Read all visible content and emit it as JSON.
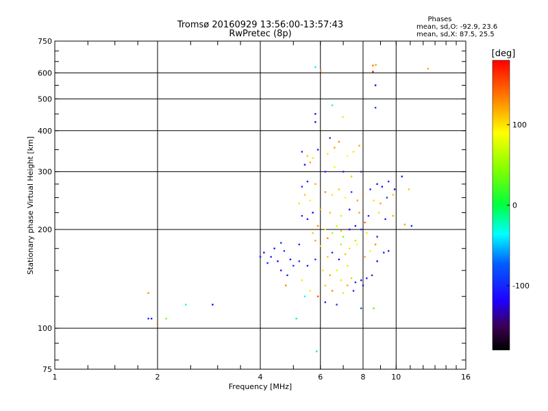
{
  "header": {
    "title_line1": "Tromsø 20160929 13:56:00-13:57:43",
    "title_line2": "RwPretec (8p)",
    "stats_title": "Phases",
    "stats_line1": "mean, sd,O: -92.9, 23.6",
    "stats_line2": "mean, sd,X:  87.5, 25.5"
  },
  "chart_data": {
    "type": "scatter",
    "xlabel": "Frequency [MHz]",
    "ylabel": "Stationary phase Virtual Height [km]",
    "xscale": "log",
    "yscale": "log",
    "xlim": [
      1,
      16
    ],
    "ylim": [
      75,
      750
    ],
    "xticks": [
      {
        "value": 1,
        "label": "1"
      },
      {
        "value": 2,
        "label": "2"
      },
      {
        "value": 4,
        "label": "4"
      },
      {
        "value": 6,
        "label": "6"
      },
      {
        "value": 8,
        "label": "8"
      },
      {
        "value": 10,
        "label": "10"
      },
      {
        "value": 16,
        "label": "16"
      }
    ],
    "yticks": [
      {
        "value": 75,
        "label": "75"
      },
      {
        "value": 100,
        "label": "100"
      },
      {
        "value": 200,
        "label": "200"
      },
      {
        "value": 300,
        "label": "300"
      },
      {
        "value": 400,
        "label": "400"
      },
      {
        "value": 500,
        "label": "500"
      },
      {
        "value": 600,
        "label": "600"
      },
      {
        "value": 750,
        "label": "750"
      }
    ],
    "x_gridlines": [
      2,
      4,
      6,
      8,
      10
    ],
    "y_gridlines": [
      100,
      200,
      300,
      400,
      500,
      600
    ],
    "colorbar": {
      "label": "[deg]",
      "range": [
        -180,
        180
      ],
      "ticks": [
        {
          "value": 100,
          "label": "100"
        },
        {
          "value": 0,
          "label": "0"
        },
        {
          "value": -100,
          "label": "-100"
        }
      ]
    },
    "points": [
      {
        "x": 1.88,
        "y": 128,
        "p": 130
      },
      {
        "x": 1.88,
        "y": 107,
        "p": -100
      },
      {
        "x": 1.92,
        "y": 107,
        "p": -110
      },
      {
        "x": 2.0,
        "y": 103,
        "p": 140
      },
      {
        "x": 2.12,
        "y": 107,
        "p": 40
      },
      {
        "x": 2.42,
        "y": 118,
        "p": -30
      },
      {
        "x": 2.9,
        "y": 118,
        "p": -120
      },
      {
        "x": 5.1,
        "y": 107,
        "p": -10
      },
      {
        "x": 5.85,
        "y": 85,
        "p": -10
      },
      {
        "x": 5.8,
        "y": 625,
        "p": -40
      },
      {
        "x": 6.02,
        "y": 610,
        "p": 120
      },
      {
        "x": 8.55,
        "y": 632,
        "p": 140
      },
      {
        "x": 8.55,
        "y": 605,
        "p": 175
      },
      {
        "x": 8.72,
        "y": 635,
        "p": 125
      },
      {
        "x": 8.7,
        "y": 550,
        "p": -130
      },
      {
        "x": 8.7,
        "y": 470,
        "p": -90
      },
      {
        "x": 12.4,
        "y": 618,
        "p": 120
      },
      {
        "x": 6.5,
        "y": 478,
        "p": -30
      },
      {
        "x": 5.8,
        "y": 450,
        "p": -120
      },
      {
        "x": 5.8,
        "y": 425,
        "p": -130
      },
      {
        "x": 6.98,
        "y": 440,
        "p": 100
      },
      {
        "x": 10.9,
        "y": 265,
        "p": 110
      },
      {
        "x": 11.1,
        "y": 205,
        "p": -100
      },
      {
        "x": 10.6,
        "y": 207,
        "p": 120
      },
      {
        "x": 10.4,
        "y": 290,
        "p": -110
      },
      {
        "x": 4.1,
        "y": 170,
        "p": -110
      },
      {
        "x": 4.3,
        "y": 165,
        "p": -100
      },
      {
        "x": 4.5,
        "y": 160,
        "p": -120
      },
      {
        "x": 4.7,
        "y": 172,
        "p": -90
      },
      {
        "x": 4.2,
        "y": 158,
        "p": -100
      },
      {
        "x": 4.6,
        "y": 150,
        "p": -105
      },
      {
        "x": 4.9,
        "y": 162,
        "p": -115
      },
      {
        "x": 5.0,
        "y": 155,
        "p": -95
      },
      {
        "x": 4.4,
        "y": 175,
        "p": -110
      },
      {
        "x": 4.8,
        "y": 145,
        "p": -100
      },
      {
        "x": 5.2,
        "y": 160,
        "p": -100
      },
      {
        "x": 5.5,
        "y": 155,
        "p": -110
      },
      {
        "x": 5.8,
        "y": 162,
        "p": -90
      },
      {
        "x": 4.75,
        "y": 135,
        "p": 130
      },
      {
        "x": 5.3,
        "y": 140,
        "p": 100
      },
      {
        "x": 5.6,
        "y": 130,
        "p": 80
      },
      {
        "x": 5.9,
        "y": 125,
        "p": 150
      },
      {
        "x": 5.4,
        "y": 125,
        "p": -30
      },
      {
        "x": 6.2,
        "y": 120,
        "p": -100
      },
      {
        "x": 6.7,
        "y": 118,
        "p": -90
      },
      {
        "x": 7.9,
        "y": 115,
        "p": -80
      },
      {
        "x": 8.6,
        "y": 115,
        "p": 30
      },
      {
        "x": 6.9,
        "y": 140,
        "p": 100
      },
      {
        "x": 7.2,
        "y": 135,
        "p": 120
      },
      {
        "x": 7.4,
        "y": 142,
        "p": 110
      },
      {
        "x": 7.6,
        "y": 138,
        "p": -100
      },
      {
        "x": 7.9,
        "y": 140,
        "p": -110
      },
      {
        "x": 8.2,
        "y": 142,
        "p": -105
      },
      {
        "x": 8.5,
        "y": 145,
        "p": -100
      },
      {
        "x": 8.8,
        "y": 160,
        "p": -120
      },
      {
        "x": 9.2,
        "y": 170,
        "p": -100
      },
      {
        "x": 9.5,
        "y": 172,
        "p": -110
      },
      {
        "x": 6.5,
        "y": 170,
        "p": -100
      },
      {
        "x": 6.8,
        "y": 162,
        "p": -110
      },
      {
        "x": 7.1,
        "y": 168,
        "p": 110
      },
      {
        "x": 7.3,
        "y": 175,
        "p": 100
      },
      {
        "x": 7.7,
        "y": 180,
        "p": 90
      },
      {
        "x": 8.1,
        "y": 165,
        "p": 120
      },
      {
        "x": 8.4,
        "y": 172,
        "p": 80
      },
      {
        "x": 8.7,
        "y": 180,
        "p": 130
      },
      {
        "x": 6.2,
        "y": 200,
        "p": 100
      },
      {
        "x": 6.5,
        "y": 195,
        "p": 60
      },
      {
        "x": 6.7,
        "y": 205,
        "p": 70
      },
      {
        "x": 6.9,
        "y": 198,
        "p": 110
      },
      {
        "x": 7.0,
        "y": 190,
        "p": 40
      },
      {
        "x": 7.3,
        "y": 200,
        "p": -120
      },
      {
        "x": 7.6,
        "y": 205,
        "p": -110
      },
      {
        "x": 7.9,
        "y": 200,
        "p": -100
      },
      {
        "x": 8.2,
        "y": 195,
        "p": 100
      },
      {
        "x": 8.8,
        "y": 190,
        "p": -100
      },
      {
        "x": 5.8,
        "y": 185,
        "p": 120
      },
      {
        "x": 6.0,
        "y": 178,
        "p": 100
      },
      {
        "x": 6.3,
        "y": 188,
        "p": 130
      },
      {
        "x": 5.3,
        "y": 220,
        "p": -100
      },
      {
        "x": 5.5,
        "y": 215,
        "p": -110
      },
      {
        "x": 5.7,
        "y": 225,
        "p": -120
      },
      {
        "x": 5.2,
        "y": 240,
        "p": 100
      },
      {
        "x": 5.4,
        "y": 255,
        "p": 110
      },
      {
        "x": 5.6,
        "y": 245,
        "p": 80
      },
      {
        "x": 5.3,
        "y": 270,
        "p": -100
      },
      {
        "x": 5.5,
        "y": 280,
        "p": -110
      },
      {
        "x": 5.8,
        "y": 275,
        "p": 120
      },
      {
        "x": 6.2,
        "y": 260,
        "p": 130
      },
      {
        "x": 6.5,
        "y": 255,
        "p": 100
      },
      {
        "x": 6.8,
        "y": 265,
        "p": 110
      },
      {
        "x": 7.1,
        "y": 250,
        "p": 90
      },
      {
        "x": 7.4,
        "y": 260,
        "p": -90
      },
      {
        "x": 7.7,
        "y": 245,
        "p": 120
      },
      {
        "x": 8.0,
        "y": 255,
        "p": 140
      },
      {
        "x": 8.4,
        "y": 265,
        "p": -100
      },
      {
        "x": 8.8,
        "y": 275,
        "p": -110
      },
      {
        "x": 9.1,
        "y": 270,
        "p": -120
      },
      {
        "x": 9.5,
        "y": 280,
        "p": -100
      },
      {
        "x": 9.9,
        "y": 265,
        "p": -130
      },
      {
        "x": 8.6,
        "y": 245,
        "p": 100
      },
      {
        "x": 9.0,
        "y": 240,
        "p": 120
      },
      {
        "x": 9.4,
        "y": 250,
        "p": -90
      },
      {
        "x": 5.3,
        "y": 345,
        "p": -100
      },
      {
        "x": 5.5,
        "y": 335,
        "p": 110
      },
      {
        "x": 5.7,
        "y": 330,
        "p": 100
      },
      {
        "x": 5.9,
        "y": 350,
        "p": -110
      },
      {
        "x": 5.4,
        "y": 315,
        "p": -120
      },
      {
        "x": 5.6,
        "y": 320,
        "p": 120
      },
      {
        "x": 6.3,
        "y": 340,
        "p": 100
      },
      {
        "x": 6.6,
        "y": 355,
        "p": 120
      },
      {
        "x": 6.4,
        "y": 380,
        "p": -100
      },
      {
        "x": 6.8,
        "y": 370,
        "p": 130
      },
      {
        "x": 7.2,
        "y": 335,
        "p": 90
      },
      {
        "x": 7.5,
        "y": 345,
        "p": 100
      },
      {
        "x": 7.8,
        "y": 360,
        "p": 120
      },
      {
        "x": 6.2,
        "y": 300,
        "p": -100
      },
      {
        "x": 6.6,
        "y": 310,
        "p": 80
      },
      {
        "x": 7.0,
        "y": 300,
        "p": -110
      },
      {
        "x": 7.4,
        "y": 290,
        "p": 110
      },
      {
        "x": 7.9,
        "y": 300,
        "p": -100
      },
      {
        "x": 6.0,
        "y": 230,
        "p": 120
      },
      {
        "x": 6.4,
        "y": 225,
        "p": 110
      },
      {
        "x": 6.9,
        "y": 220,
        "p": 100
      },
      {
        "x": 7.3,
        "y": 230,
        "p": -120
      },
      {
        "x": 7.8,
        "y": 225,
        "p": 120
      },
      {
        "x": 8.3,
        "y": 220,
        "p": -100
      },
      {
        "x": 8.9,
        "y": 225,
        "p": 100
      },
      {
        "x": 9.3,
        "y": 215,
        "p": -110
      },
      {
        "x": 9.8,
        "y": 220,
        "p": 120
      },
      {
        "x": 6.1,
        "y": 150,
        "p": 100
      },
      {
        "x": 6.4,
        "y": 145,
        "p": 120
      },
      {
        "x": 6.7,
        "y": 150,
        "p": 80
      },
      {
        "x": 6.2,
        "y": 135,
        "p": 110
      },
      {
        "x": 6.5,
        "y": 130,
        "p": 130
      },
      {
        "x": 7.0,
        "y": 128,
        "p": 100
      },
      {
        "x": 7.5,
        "y": 130,
        "p": -100
      },
      {
        "x": 8.0,
        "y": 135,
        "p": -110
      },
      {
        "x": 5.2,
        "y": 180,
        "p": -100
      },
      {
        "x": 4.6,
        "y": 182,
        "p": -90
      },
      {
        "x": 4.0,
        "y": 165,
        "p": -100
      },
      {
        "x": 5.7,
        "y": 195,
        "p": 110
      },
      {
        "x": 5.9,
        "y": 205,
        "p": 130
      },
      {
        "x": 9.8,
        "y": 255,
        "p": 110
      },
      {
        "x": 8.1,
        "y": 210,
        "p": 140
      },
      {
        "x": 7.6,
        "y": 185,
        "p": 50
      },
      {
        "x": 6.9,
        "y": 180,
        "p": 60
      },
      {
        "x": 6.3,
        "y": 165,
        "p": 110
      },
      {
        "x": 7.2,
        "y": 155,
        "p": 100
      }
    ]
  }
}
